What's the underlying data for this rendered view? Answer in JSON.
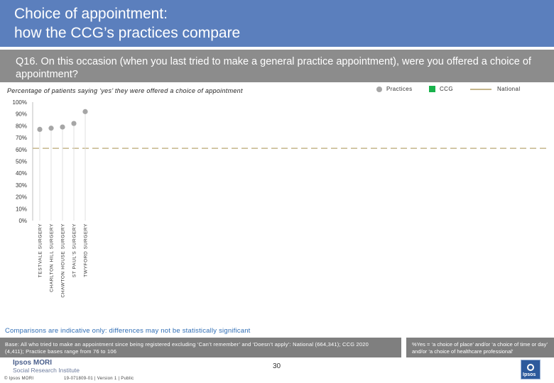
{
  "header": {
    "title": "Choice of appointment:\nhow the CCG’s practices compare"
  },
  "question": {
    "text": "Q16. On this occasion (when you last tried to make a general practice appointment), were you offered a choice of appointment?"
  },
  "legend": {
    "practices": "Practices",
    "ccg": "CCG",
    "national": "National"
  },
  "colors": {
    "header_bg": "#5b7fbd",
    "question_bg": "#8c8c8c",
    "practice_marker": "#a6a6a6",
    "ccg": "#19b24b",
    "national_line": "#c5b58a",
    "comparison_text": "#2f6db5",
    "base_bg": "#7f7f7f"
  },
  "chart_data": {
    "type": "scatter",
    "title": "Percentage of patients saying ‘yes’ they were offered a choice of appointment",
    "ylim": [
      0,
      100
    ],
    "yticks": [
      0,
      10,
      20,
      30,
      40,
      50,
      60,
      70,
      80,
      90,
      100
    ],
    "ytick_labels": [
      "0%",
      "10%",
      "20%",
      "30%",
      "40%",
      "50%",
      "60%",
      "70%",
      "80%",
      "90%",
      "100%"
    ],
    "categories": [
      "TESTVALE SURGERY",
      "CHARLTON HILL SURGERY",
      "CHAWTON HOUSE SURGERY",
      "ST PAUL'S SURGERY",
      "TWYFORD SURGERY"
    ],
    "series": [
      {
        "name": "Practices",
        "values": [
          77,
          78,
          79,
          82,
          92
        ]
      }
    ],
    "national": 61,
    "grid": false,
    "legend_position": "top-right"
  },
  "notes": {
    "comparison": "Comparisons are indicative only: differences may not be statistically significant",
    "base": "Base: All who tried to make an appointment since being registered excluding ‘Can’t remember’ and ‘Doesn’t apply’: National (664,341); CCG 2020 (4,411); Practice bases range from 76 to 106",
    "footnote": "%Yes = ‘a choice of place’ and/or ‘a choice of time or day’ and/or ‘a choice of healthcare professional’"
  },
  "footer": {
    "logo_line1": "Ipsos MORI",
    "logo_line2": "Social Research Institute",
    "page_number": "30",
    "copyright": "© Ipsos MORI",
    "version": "19-071809-01 | Version 1 | Public",
    "icon_word": "Ipsos"
  }
}
